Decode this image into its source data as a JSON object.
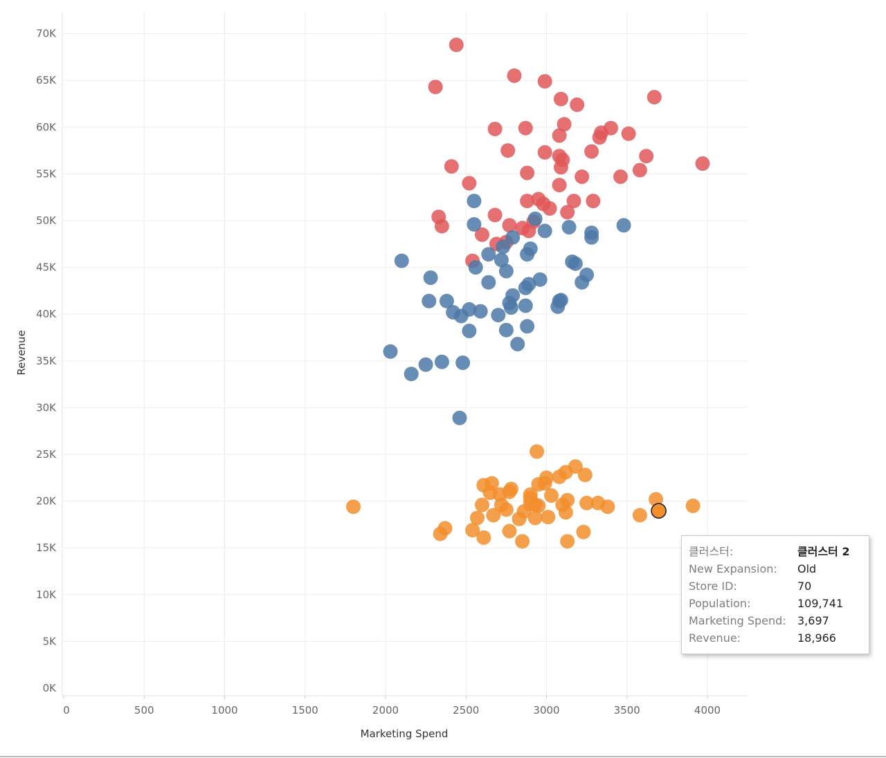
{
  "chart_data": {
    "type": "scatter",
    "title": "",
    "xlabel": "Marketing Spend",
    "ylabel": "Revenue",
    "xlim": [
      0,
      4250
    ],
    "ylim": [
      0,
      73000
    ],
    "x_ticks": [
      0,
      500,
      1000,
      1500,
      2000,
      2500,
      3000,
      3500,
      4000
    ],
    "x_tick_labels": [
      "0",
      "500",
      "1000",
      "1500",
      "2000",
      "2500",
      "3000",
      "3500",
      "4000"
    ],
    "y_ticks": [
      0,
      5000,
      10000,
      15000,
      20000,
      25000,
      30000,
      35000,
      40000,
      45000,
      50000,
      55000,
      60000,
      65000,
      70000
    ],
    "y_tick_labels": [
      "0K",
      "5K",
      "10K",
      "15K",
      "20K",
      "25K",
      "30K",
      "35K",
      "40K",
      "45K",
      "50K",
      "55K",
      "60K",
      "65K",
      "70K"
    ],
    "grid": true,
    "series": [
      {
        "name": "cluster-red",
        "color": "#e15759",
        "points": [
          [
            2440,
            68800
          ],
          [
            2310,
            64300
          ],
          [
            2800,
            65500
          ],
          [
            2990,
            64900
          ],
          [
            3090,
            63000
          ],
          [
            3190,
            62400
          ],
          [
            3670,
            63200
          ],
          [
            2680,
            59800
          ],
          [
            2870,
            59900
          ],
          [
            3110,
            60300
          ],
          [
            3080,
            59100
          ],
          [
            3340,
            59400
          ],
          [
            3400,
            59900
          ],
          [
            3510,
            59300
          ],
          [
            3330,
            58900
          ],
          [
            2760,
            57500
          ],
          [
            2990,
            57300
          ],
          [
            3080,
            56900
          ],
          [
            3100,
            56500
          ],
          [
            3280,
            57400
          ],
          [
            3620,
            56900
          ],
          [
            3090,
            55700
          ],
          [
            2410,
            55800
          ],
          [
            3970,
            56100
          ],
          [
            2880,
            55100
          ],
          [
            3220,
            54700
          ],
          [
            3460,
            54700
          ],
          [
            3580,
            55400
          ],
          [
            2520,
            54000
          ],
          [
            3080,
            53800
          ],
          [
            2880,
            52100
          ],
          [
            2950,
            52300
          ],
          [
            2980,
            51800
          ],
          [
            3020,
            51300
          ],
          [
            3170,
            52100
          ],
          [
            3290,
            52100
          ],
          [
            2680,
            50600
          ],
          [
            3130,
            50900
          ],
          [
            2330,
            50400
          ],
          [
            2350,
            49400
          ],
          [
            2770,
            49500
          ],
          [
            2850,
            49200
          ],
          [
            2920,
            49900
          ],
          [
            2890,
            48900
          ],
          [
            2600,
            48500
          ],
          [
            2690,
            47500
          ],
          [
            2750,
            47700
          ],
          [
            2540,
            45700
          ]
        ]
      },
      {
        "name": "cluster-blue",
        "color": "#4e79a7",
        "points": [
          [
            2550,
            52100
          ],
          [
            2550,
            49600
          ],
          [
            2930,
            50200
          ],
          [
            2990,
            48900
          ],
          [
            3140,
            49300
          ],
          [
            3280,
            48700
          ],
          [
            3280,
            48200
          ],
          [
            3480,
            49500
          ],
          [
            2790,
            48200
          ],
          [
            2730,
            47200
          ],
          [
            2900,
            47000
          ],
          [
            2880,
            46400
          ],
          [
            2640,
            46400
          ],
          [
            2100,
            45700
          ],
          [
            2560,
            45000
          ],
          [
            2720,
            45800
          ],
          [
            2750,
            44600
          ],
          [
            3160,
            45600
          ],
          [
            3180,
            45400
          ],
          [
            3250,
            44200
          ],
          [
            2280,
            43900
          ],
          [
            2640,
            43400
          ],
          [
            2960,
            43700
          ],
          [
            3220,
            43400
          ],
          [
            2870,
            42800
          ],
          [
            2890,
            43200
          ],
          [
            2790,
            42000
          ],
          [
            2770,
            41200
          ],
          [
            2270,
            41400
          ],
          [
            2380,
            41400
          ],
          [
            2870,
            40900
          ],
          [
            2780,
            40700
          ],
          [
            2520,
            40500
          ],
          [
            2590,
            40300
          ],
          [
            2420,
            40200
          ],
          [
            2470,
            39800
          ],
          [
            2700,
            39900
          ],
          [
            3080,
            41400
          ],
          [
            3090,
            41500
          ],
          [
            3070,
            40800
          ],
          [
            2520,
            38200
          ],
          [
            2750,
            38300
          ],
          [
            2880,
            38700
          ],
          [
            2820,
            36800
          ],
          [
            2030,
            36000
          ],
          [
            2350,
            34900
          ],
          [
            2480,
            34800
          ],
          [
            2250,
            34600
          ],
          [
            2160,
            33600
          ],
          [
            2460,
            28900
          ]
        ]
      },
      {
        "name": "cluster-orange",
        "color": "#f28e2b",
        "points": [
          [
            2940,
            25300
          ],
          [
            3180,
            23700
          ],
          [
            3120,
            23100
          ],
          [
            3080,
            22600
          ],
          [
            3240,
            22800
          ],
          [
            3000,
            22500
          ],
          [
            2990,
            21900
          ],
          [
            2950,
            21800
          ],
          [
            2610,
            21700
          ],
          [
            2660,
            21900
          ],
          [
            2780,
            21300
          ],
          [
            2770,
            21000
          ],
          [
            2650,
            20900
          ],
          [
            2710,
            20700
          ],
          [
            2900,
            20700
          ],
          [
            2900,
            20300
          ],
          [
            3030,
            20600
          ],
          [
            3130,
            20100
          ],
          [
            2720,
            19600
          ],
          [
            2600,
            19600
          ],
          [
            2900,
            19700
          ],
          [
            2930,
            19600
          ],
          [
            2950,
            19500
          ],
          [
            3100,
            19600
          ],
          [
            3250,
            19800
          ],
          [
            3320,
            19800
          ],
          [
            3380,
            19400
          ],
          [
            3680,
            20200
          ],
          [
            3910,
            19500
          ],
          [
            1800,
            19400
          ],
          [
            2750,
            19100
          ],
          [
            2860,
            18900
          ],
          [
            3120,
            18800
          ],
          [
            2570,
            18200
          ],
          [
            2670,
            18500
          ],
          [
            2830,
            18100
          ],
          [
            2930,
            18200
          ],
          [
            3010,
            18300
          ],
          [
            3580,
            18500
          ],
          [
            2370,
            17100
          ],
          [
            2340,
            16500
          ],
          [
            2540,
            16900
          ],
          [
            2770,
            16800
          ],
          [
            3230,
            16700
          ],
          [
            2610,
            16100
          ],
          [
            2850,
            15700
          ],
          [
            3130,
            15700
          ]
        ]
      }
    ],
    "highlighted_point": {
      "x": 3697,
      "y": 18966,
      "series": "cluster-orange"
    }
  },
  "tooltip": {
    "rows": [
      {
        "label": "클러스터:",
        "value": "클러스터 2",
        "bold": true
      },
      {
        "label": "New Expansion:",
        "value": "Old",
        "bold": false
      },
      {
        "label": "Store ID:",
        "value": "70",
        "bold": false
      },
      {
        "label": "Population:",
        "value": "109,741",
        "bold": false
      },
      {
        "label": "Marketing Spend:",
        "value": "3,697",
        "bold": false
      },
      {
        "label": "Revenue:",
        "value": "18,966",
        "bold": false
      }
    ]
  }
}
